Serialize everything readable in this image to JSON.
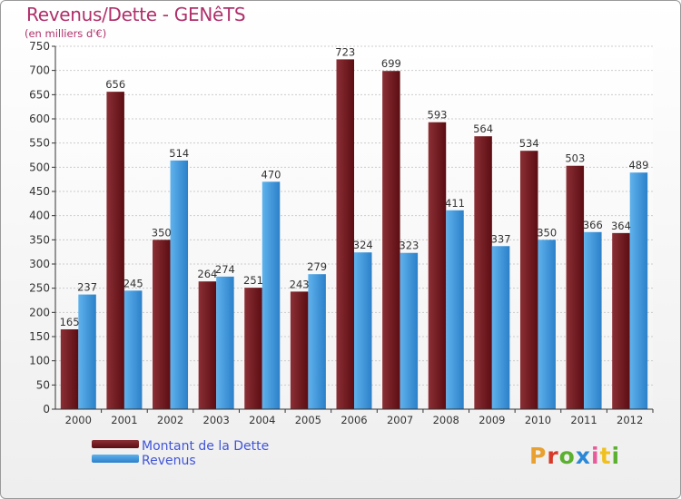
{
  "header": {
    "title": "Revenus/Dette - GENêTS",
    "subtitle": "(en milliers d'€)"
  },
  "legend": {
    "debt": "Montant de la Dette",
    "revenue": "Revenus"
  },
  "logo": {
    "text": "Proxiti",
    "colors": [
      "#e8a030",
      "#d83a2a",
      "#5bb030",
      "#2a88d8",
      "#e85a9a",
      "#f0c020",
      "#5bb030"
    ]
  },
  "colors": {
    "debt_top": "#8a2f35",
    "debt_bottom": "#5c0d12",
    "revenue_top": "#5fb2ec",
    "revenue_bottom": "#2b80c9"
  },
  "chart_data": {
    "type": "bar",
    "title": "Revenus/Dette - GENêTS",
    "ylabel": "(en milliers d'€)",
    "categories": [
      "2000",
      "2001",
      "2002",
      "2003",
      "2004",
      "2005",
      "2006",
      "2007",
      "2008",
      "2009",
      "2010",
      "2011",
      "2012"
    ],
    "series": [
      {
        "name": "Montant de la Dette",
        "values": [
          165,
          656,
          350,
          264,
          251,
          243,
          723,
          699,
          593,
          564,
          534,
          503,
          364
        ]
      },
      {
        "name": "Revenus",
        "values": [
          237,
          245,
          514,
          274,
          470,
          279,
          324,
          323,
          411,
          337,
          350,
          366,
          489
        ]
      }
    ],
    "ylim": [
      0,
      750
    ],
    "yticks": [
      0,
      50,
      100,
      150,
      200,
      250,
      300,
      350,
      400,
      450,
      500,
      550,
      600,
      650,
      700,
      750
    ],
    "grid": true,
    "legend_position": "bottom-left"
  }
}
